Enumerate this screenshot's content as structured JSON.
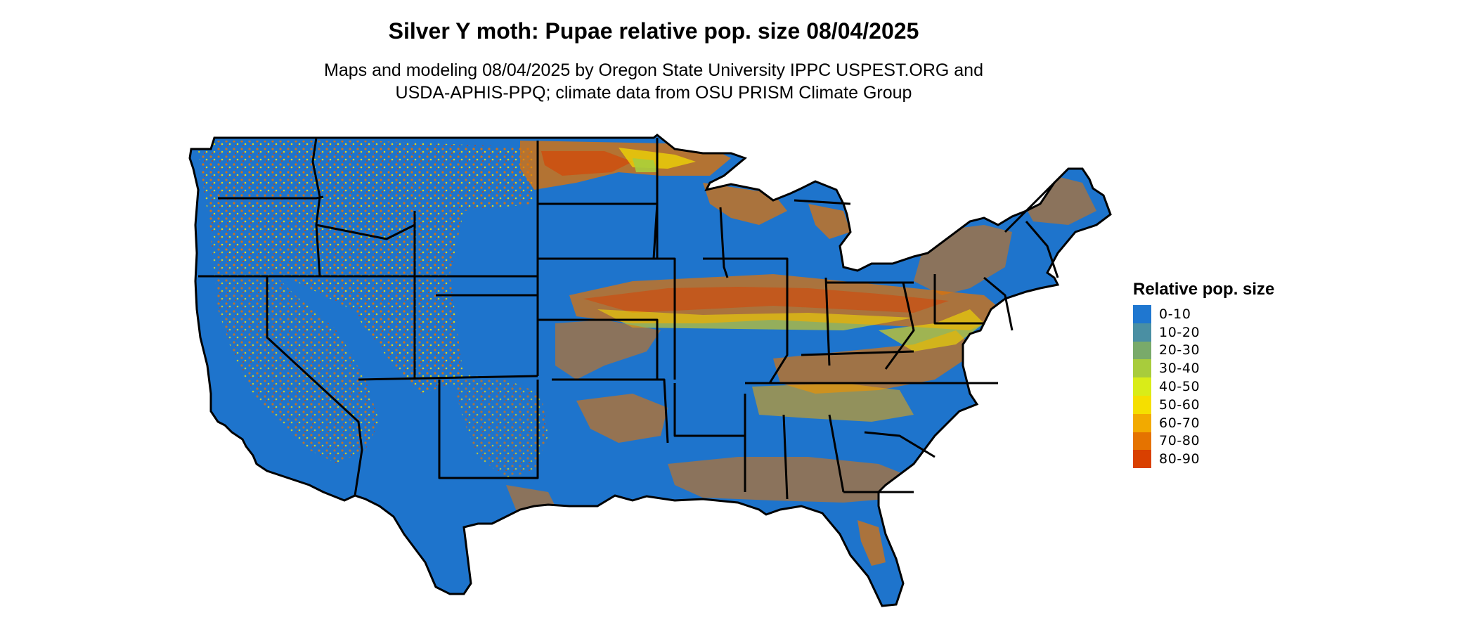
{
  "map": {
    "title": "Silver Y moth: Pupae relative pop. size 08/04/2025",
    "subtitle_lines": [
      "Maps and modeling 08/04/2025 by Oregon State University IPPC USPEST.ORG and",
      "USDA-APHIS-PPQ; climate data from OSU PRISM Climate Group"
    ],
    "region": "Contiguous United States",
    "base_color": "#1e74cc",
    "border_color": "#000000"
  },
  "legend": {
    "title": "Relative pop. size",
    "items": [
      {
        "label": "0-10",
        "color": "#1f77d0"
      },
      {
        "label": "10-20",
        "color": "#4a8fa3"
      },
      {
        "label": "20-30",
        "color": "#79aa6a"
      },
      {
        "label": "30-40",
        "color": "#a8cc3c"
      },
      {
        "label": "40-50",
        "color": "#d9ec18"
      },
      {
        "label": "50-60",
        "color": "#f5df00"
      },
      {
        "label": "60-70",
        "color": "#f2aa00"
      },
      {
        "label": "70-80",
        "color": "#e57300"
      },
      {
        "label": "80-90",
        "color": "#d94000"
      }
    ]
  }
}
